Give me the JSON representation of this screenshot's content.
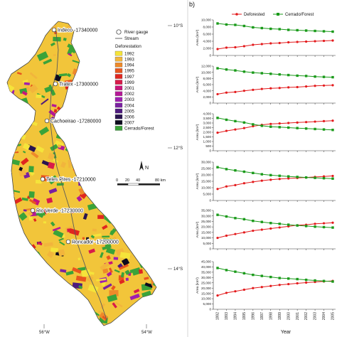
{
  "map": {
    "lat_ticks": [
      "10°S",
      "12°S",
      "14°S"
    ],
    "lon_ticks": [
      "56°W",
      "54°W"
    ],
    "gauges": [
      {
        "label": "Indeco -17340000"
      },
      {
        "label": "Tratex -17300000"
      },
      {
        "label": "Cachoeirao -17280000"
      },
      {
        "label": "Teles Pires -17210000"
      },
      {
        "label": "Rio Verde -17230000"
      },
      {
        "label": "Roncador -17200000"
      }
    ],
    "legend": {
      "river_gauge": "River gauge",
      "stream": "Stream",
      "deforestation_title": "Deforestation",
      "classes": [
        {
          "label": "1992",
          "color": "#f5e43a"
        },
        {
          "label": "1993",
          "color": "#f2b53c"
        },
        {
          "label": "1994",
          "color": "#ee8a2a"
        },
        {
          "label": "1995",
          "color": "#e8561e"
        },
        {
          "label": "1997",
          "color": "#e0261f"
        },
        {
          "label": "1999",
          "color": "#d81b4a"
        },
        {
          "label": "2001",
          "color": "#c8157a"
        },
        {
          "label": "2002",
          "color": "#b41896"
        },
        {
          "label": "2003",
          "color": "#9e1fb0"
        },
        {
          "label": "2004",
          "color": "#7a21a0"
        },
        {
          "label": "2005",
          "color": "#4e1b7e"
        },
        {
          "label": "2006",
          "color": "#2a1550"
        },
        {
          "label": "2007",
          "color": "#0d0b1e"
        },
        {
          "label": "Cerrado/Forest",
          "color": "#3aa339"
        }
      ]
    },
    "scale": {
      "labels": [
        "0",
        "20",
        "40",
        "80 km"
      ]
    },
    "north_label": "N"
  },
  "panel_label": "b)",
  "legend": {
    "deforested": "Deforested",
    "cerrado": "Cerrado/Forest"
  },
  "colors": {
    "deforested": "#e31a1c",
    "cerrado": "#1a9a1a"
  },
  "xlabel": "Year",
  "chart_data": [
    {
      "type": "line",
      "ylabel": "Area (km²)",
      "ylim": [
        0,
        10000
      ],
      "yticks": [
        "0",
        "2,000",
        "4,000",
        "6,000",
        "8,000",
        "10,000"
      ],
      "x": [
        1992,
        1993,
        1994,
        1995,
        1996,
        1997,
        1998,
        1999,
        2000,
        2001,
        2002,
        2003,
        2004,
        2005
      ],
      "series": [
        {
          "name": "Deforested",
          "values": [
            1800,
            2200,
            2300,
            2600,
            3000,
            3200,
            3400,
            3500,
            3700,
            3800,
            3900,
            4000,
            4100,
            4200
          ]
        },
        {
          "name": "Cerrado/Forest",
          "values": [
            9000,
            8700,
            8600,
            8300,
            7900,
            7700,
            7500,
            7400,
            7200,
            7100,
            7000,
            6900,
            6800,
            6700
          ]
        }
      ]
    },
    {
      "type": "line",
      "ylabel": "Area (km²)",
      "ylim": [
        0,
        12000
      ],
      "yticks": [
        "0",
        "2,000",
        "4,000",
        "6,000",
        "8,000",
        "10,000",
        "12,000"
      ],
      "x": [
        1992,
        1993,
        1994,
        1995,
        1996,
        1997,
        1998,
        1999,
        2000,
        2001,
        2002,
        2003,
        2004,
        2005
      ],
      "series": [
        {
          "name": "Deforested",
          "values": [
            2900,
            3400,
            3600,
            4000,
            4300,
            4600,
            4800,
            4900,
            5100,
            5200,
            5400,
            5600,
            5700,
            5800
          ]
        },
        {
          "name": "Cerrado/Forest",
          "values": [
            11300,
            10900,
            10600,
            10200,
            9900,
            9700,
            9500,
            9300,
            9100,
            8900,
            8800,
            8600,
            8500,
            8400
          ]
        }
      ]
    },
    {
      "type": "line",
      "ylabel": "Area (km²)",
      "ylim": [
        0,
        4000
      ],
      "yticks": [
        "0",
        "500",
        "1,000",
        "1,500",
        "2,000",
        "2,500",
        "3,000",
        "3,500",
        "4,000"
      ],
      "x": [
        1992,
        1993,
        1994,
        1995,
        1996,
        1997,
        1998,
        1999,
        2000,
        2001,
        2002,
        2003,
        2004,
        2005
      ],
      "series": [
        {
          "name": "Deforested",
          "values": [
            1950,
            2150,
            2300,
            2450,
            2650,
            2800,
            2900,
            2950,
            3000,
            3050,
            3100,
            3150,
            3200,
            3250
          ]
        },
        {
          "name": "Cerrado/Forest",
          "values": [
            3550,
            3350,
            3200,
            3050,
            2850,
            2700,
            2600,
            2550,
            2500,
            2450,
            2400,
            2350,
            2300,
            2250
          ]
        }
      ]
    },
    {
      "type": "line",
      "ylabel": "Area (km²)",
      "ylim": [
        0,
        30000
      ],
      "yticks": [
        "0",
        "5,000",
        "10,000",
        "15,000",
        "20,000",
        "25,000",
        "30,000"
      ],
      "x": [
        1992,
        1993,
        1994,
        1995,
        1996,
        1997,
        1998,
        1999,
        2000,
        2001,
        2002,
        2003,
        2004,
        2005
      ],
      "series": [
        {
          "name": "Deforested",
          "values": [
            9000,
            11000,
            12000,
            13500,
            14500,
            15500,
            16200,
            16800,
            17200,
            17600,
            18000,
            18400,
            18800,
            19200
          ]
        },
        {
          "name": "Cerrado/Forest",
          "values": [
            26000,
            24500,
            23500,
            22500,
            21500,
            20500,
            19800,
            19300,
            18800,
            18400,
            18000,
            17700,
            17400,
            17100
          ]
        }
      ]
    },
    {
      "type": "line",
      "ylabel": "Area (km²)",
      "ylim": [
        0,
        35000
      ],
      "yticks": [
        "0",
        "5,000",
        "10,000",
        "15,000",
        "20,000",
        "25,000",
        "30,000",
        "35,000"
      ],
      "x": [
        1992,
        1993,
        1994,
        1995,
        1996,
        1997,
        1998,
        1999,
        2000,
        2001,
        2002,
        2003,
        2004,
        2005
      ],
      "series": [
        {
          "name": "Deforested",
          "values": [
            10000,
            12000,
            13500,
            15000,
            16500,
            17500,
            18500,
            19500,
            20500,
            21500,
            22000,
            22800,
            23300,
            23800
          ]
        },
        {
          "name": "Cerrado/Forest",
          "values": [
            31000,
            29500,
            28000,
            27000,
            25500,
            24500,
            23500,
            22800,
            22000,
            21300,
            20800,
            20200,
            19800,
            19400
          ]
        }
      ]
    },
    {
      "type": "line",
      "ylabel": "Area (km²)",
      "ylim": [
        0,
        45000
      ],
      "yticks": [
        "0",
        "5,000",
        "10,000",
        "15,000",
        "20,000",
        "25,000",
        "30,000",
        "35,000",
        "40,000",
        "45,000"
      ],
      "x": [
        1992,
        1993,
        1994,
        1995,
        1996,
        1997,
        1998,
        1999,
        2000,
        2001,
        2002,
        2003,
        2004,
        2005
      ],
      "series": [
        {
          "name": "Deforested",
          "values": [
            13000,
            15500,
            17000,
            18500,
            20000,
            21000,
            22000,
            23000,
            23800,
            24500,
            25200,
            25800,
            26300,
            26800
          ]
        },
        {
          "name": "Cerrado/Forest",
          "values": [
            39000,
            37000,
            35500,
            34000,
            32500,
            31500,
            30500,
            29500,
            29000,
            28500,
            27800,
            27200,
            26700,
            26200
          ]
        }
      ]
    }
  ]
}
